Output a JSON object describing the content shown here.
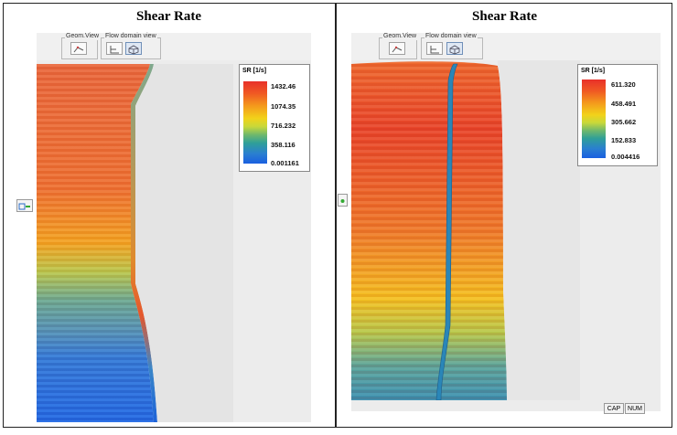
{
  "left": {
    "title": "Shear Rate",
    "toolbar": {
      "geom_view": "Geom.View",
      "flow_domain_view": "Flow domain view"
    },
    "legend": {
      "title": "SR [1/s]",
      "ticks": [
        "1432.46",
        "1074.35",
        "716.232",
        "358.116",
        "0.001161"
      ]
    }
  },
  "right": {
    "title": "Shear Rate",
    "toolbar": {
      "geom_view": "Geom.View",
      "flow_domain_view": "Flow domain view"
    },
    "legend": {
      "title": "SR [1/s]",
      "ticks": [
        "611.320",
        "458.491",
        "305.662",
        "152.833",
        "0.004416"
      ]
    },
    "status": {
      "cap": "CAP",
      "num": "NUM"
    }
  },
  "colors": {
    "high": "#e8302a",
    "mid": "#f2d21a",
    "low": "#1a5fe0",
    "frame": "#222222"
  }
}
